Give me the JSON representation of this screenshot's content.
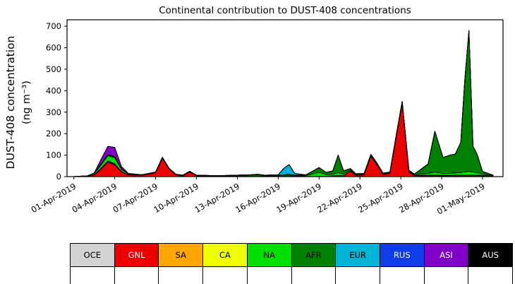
{
  "chart_data": {
    "type": "area",
    "stacked": true,
    "title": "Continental contribution to DUST-408 concentrations",
    "ylabel_line1": "DUST-408 concentration",
    "ylabel_line2": "(ng m⁻³)",
    "grid": false,
    "legend_position": "bottom-table",
    "ylim": [
      0,
      730
    ],
    "yticks": [
      0,
      100,
      200,
      300,
      400,
      500,
      600,
      700
    ],
    "xlim": [
      -0.5,
      31.5
    ],
    "xticks": [
      {
        "day": 0,
        "label": "01-Apr-2019"
      },
      {
        "day": 3,
        "label": "04-Apr-2019"
      },
      {
        "day": 6,
        "label": "07-Apr-2019"
      },
      {
        "day": 9,
        "label": "10-Apr-2019"
      },
      {
        "day": 12,
        "label": "13-Apr-2019"
      },
      {
        "day": 15,
        "label": "16-Apr-2019"
      },
      {
        "day": 18,
        "label": "19-Apr-2019"
      },
      {
        "day": 21,
        "label": "22-Apr-2019"
      },
      {
        "day": 24,
        "label": "25-Apr-2019"
      },
      {
        "day": 27,
        "label": "28-Apr-2019"
      },
      {
        "day": 30,
        "label": "01-May-2019"
      }
    ],
    "x_days": [
      0,
      1,
      1.5,
      2,
      2.5,
      3,
      3.5,
      4,
      5,
      6,
      6.5,
      7,
      7.5,
      8,
      8.5,
      9,
      10,
      11,
      12,
      13,
      13.5,
      14,
      15,
      15.4,
      15.8,
      16.2,
      17,
      17.5,
      18,
      18.5,
      19,
      19.4,
      19.8,
      20.3,
      20.7,
      21.3,
      21.8,
      22.2,
      22.7,
      23.2,
      23.7,
      24.1,
      24.6,
      25,
      26,
      26.5,
      27.1,
      27.6,
      28,
      28.4,
      28.7,
      29.0,
      29.3,
      29.6,
      30,
      30.8
    ],
    "series": [
      {
        "name": "OCE",
        "color": "#d3d3d3",
        "values": [
          0,
          0,
          0,
          0,
          0,
          0,
          0,
          0,
          0,
          0,
          0,
          0,
          0,
          0,
          0,
          0,
          0,
          0,
          0,
          0,
          0,
          0,
          0,
          0,
          0,
          0,
          0,
          0,
          0,
          0,
          0,
          0,
          0,
          0,
          0,
          0,
          0,
          0,
          0,
          0,
          0,
          0,
          0,
          0,
          0,
          0,
          0,
          0,
          0,
          0,
          0,
          0,
          0,
          0,
          0,
          0
        ]
      },
      {
        "name": "GNL",
        "color": "#ee0000",
        "values": [
          0,
          2,
          8,
          35,
          68,
          55,
          22,
          8,
          6,
          18,
          85,
          35,
          8,
          4,
          22,
          4,
          2,
          2,
          2,
          2,
          2,
          2,
          2,
          2,
          3,
          2,
          2,
          2,
          2,
          2,
          3,
          4,
          4,
          26,
          6,
          8,
          95,
          60,
          10,
          15,
          200,
          340,
          20,
          5,
          3,
          3,
          3,
          3,
          3,
          3,
          3,
          3,
          3,
          3,
          3,
          1
        ]
      },
      {
        "name": "SA",
        "color": "#ffa500",
        "values": [
          0,
          0,
          0,
          2,
          3,
          3,
          1,
          0,
          0,
          0,
          0,
          0,
          0,
          0,
          0,
          0,
          0,
          0,
          0,
          0,
          0,
          0,
          0,
          0,
          0,
          0,
          0,
          0,
          0,
          0,
          0,
          0,
          0,
          0,
          0,
          0,
          0,
          0,
          0,
          0,
          0,
          0,
          0,
          0,
          0,
          0,
          0,
          0,
          0,
          0,
          0,
          0,
          0,
          0,
          0,
          0
        ]
      },
      {
        "name": "CA",
        "color": "#f0ff00",
        "values": [
          0,
          0,
          0,
          2,
          2,
          2,
          0,
          0,
          0,
          0,
          0,
          0,
          0,
          0,
          0,
          0,
          0,
          0,
          0,
          0,
          0,
          0,
          0,
          0,
          0,
          0,
          0,
          0,
          0,
          0,
          0,
          0,
          0,
          0,
          0,
          0,
          0,
          0,
          0,
          0,
          0,
          0,
          0,
          0,
          3,
          4,
          3,
          3,
          4,
          4,
          4,
          4,
          4,
          4,
          3,
          1
        ]
      },
      {
        "name": "NA",
        "color": "#00e000",
        "values": [
          0,
          2,
          6,
          16,
          24,
          28,
          10,
          4,
          2,
          2,
          3,
          2,
          2,
          2,
          2,
          2,
          2,
          2,
          3,
          4,
          5,
          3,
          3,
          4,
          5,
          3,
          3,
          10,
          18,
          8,
          8,
          14,
          8,
          5,
          3,
          3,
          4,
          4,
          3,
          3,
          4,
          5,
          4,
          3,
          8,
          14,
          8,
          9,
          10,
          12,
          15,
          18,
          14,
          12,
          6,
          2
        ]
      },
      {
        "name": "AFR",
        "color": "#008000",
        "values": [
          0,
          0,
          1,
          2,
          3,
          3,
          2,
          1,
          1,
          1,
          2,
          1,
          1,
          1,
          1,
          1,
          1,
          1,
          2,
          3,
          4,
          2,
          2,
          2,
          3,
          2,
          2,
          12,
          22,
          10,
          15,
          82,
          15,
          6,
          4,
          3,
          4,
          4,
          3,
          3,
          4,
          5,
          5,
          4,
          45,
          190,
          75,
          85,
          88,
          140,
          430,
          655,
          120,
          85,
          12,
          2
        ]
      },
      {
        "name": "EUR",
        "color": "#00b4d8",
        "values": [
          0,
          0,
          0,
          0,
          0,
          0,
          0,
          0,
          0,
          0,
          0,
          0,
          0,
          0,
          0,
          0,
          0,
          0,
          0,
          0,
          0,
          0,
          1,
          30,
          45,
          8,
          1,
          0,
          0,
          0,
          0,
          0,
          0,
          0,
          0,
          0,
          0,
          0,
          0,
          0,
          0,
          0,
          0,
          0,
          0,
          0,
          0,
          0,
          0,
          0,
          0,
          0,
          0,
          0,
          0,
          0
        ]
      },
      {
        "name": "RUS",
        "color": "#0d3ce8",
        "values": [
          0,
          0,
          0,
          2,
          3,
          3,
          1,
          0,
          0,
          0,
          0,
          0,
          0,
          0,
          0,
          0,
          0,
          0,
          0,
          0,
          0,
          0,
          0,
          0,
          0,
          0,
          0,
          0,
          0,
          0,
          0,
          0,
          0,
          0,
          0,
          0,
          0,
          0,
          0,
          0,
          0,
          0,
          0,
          0,
          0,
          0,
          0,
          0,
          0,
          0,
          0,
          0,
          0,
          0,
          0,
          0
        ]
      },
      {
        "name": "ASI",
        "color": "#8000c8",
        "values": [
          0,
          0,
          2,
          22,
          38,
          42,
          10,
          2,
          0,
          0,
          0,
          0,
          0,
          0,
          0,
          0,
          0,
          0,
          0,
          0,
          0,
          0,
          0,
          0,
          0,
          0,
          0,
          0,
          0,
          0,
          0,
          0,
          0,
          0,
          0,
          0,
          0,
          0,
          0,
          0,
          0,
          0,
          0,
          0,
          0,
          0,
          0,
          0,
          0,
          0,
          0,
          0,
          0,
          0,
          0,
          0
        ]
      },
      {
        "name": "AUS",
        "color": "#000000",
        "values": [
          0,
          0,
          0,
          0,
          0,
          0,
          0,
          0,
          0,
          0,
          0,
          0,
          0,
          0,
          0,
          0,
          0,
          0,
          0,
          0,
          0,
          0,
          0,
          0,
          0,
          0,
          0,
          0,
          0,
          0,
          0,
          0,
          0,
          0,
          0,
          0,
          0,
          0,
          0,
          0,
          0,
          0,
          0,
          0,
          0,
          0,
          0,
          0,
          0,
          0,
          0,
          0,
          0,
          0,
          0,
          0
        ]
      }
    ]
  },
  "legend": {
    "items": [
      {
        "label": "OCE",
        "color": "#d3d3d3",
        "text": "#000000"
      },
      {
        "label": "GNL",
        "color": "#ee0000",
        "text": "#ffffff"
      },
      {
        "label": "SA",
        "color": "#ffa500",
        "text": "#000000"
      },
      {
        "label": "CA",
        "color": "#f0ff00",
        "text": "#000000"
      },
      {
        "label": "NA",
        "color": "#00e000",
        "text": "#000000"
      },
      {
        "label": "AFR",
        "color": "#008000",
        "text": "#000000"
      },
      {
        "label": "EUR",
        "color": "#00b4d8",
        "text": "#000000"
      },
      {
        "label": "RUS",
        "color": "#0d3ce8",
        "text": "#ffffff"
      },
      {
        "label": "ASI",
        "color": "#8000c8",
        "text": "#ffffff"
      },
      {
        "label": "AUS",
        "color": "#000000",
        "text": "#ffffff"
      }
    ]
  }
}
